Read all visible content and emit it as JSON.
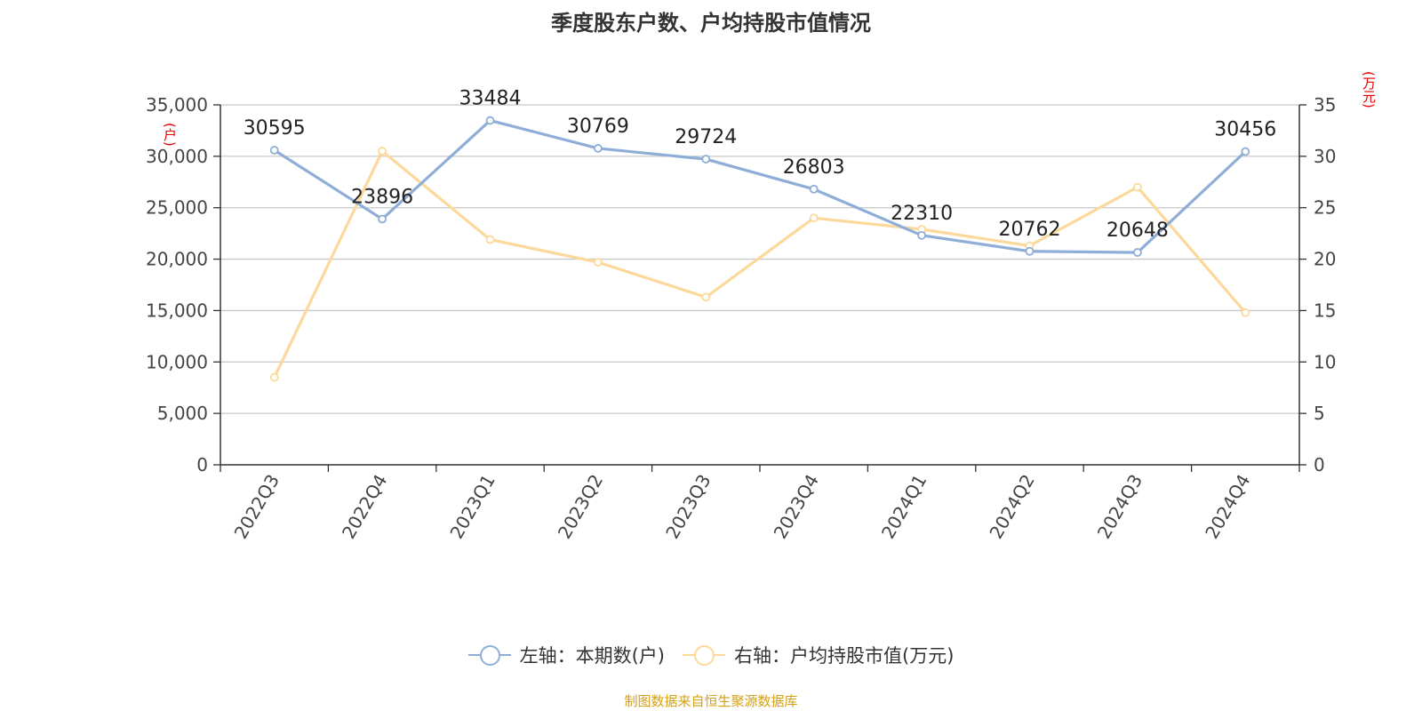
{
  "title": "季度股东户数、户均持股市值情况",
  "source": "制图数据来自恒生聚源数据库",
  "colors": {
    "left": "#8eaed8",
    "right": "#fcd99a",
    "unit_label": "#e60000"
  },
  "chart_data": {
    "type": "line",
    "categories": [
      "2022Q3",
      "2022Q4",
      "2023Q1",
      "2023Q2",
      "2023Q3",
      "2023Q4",
      "2024Q1",
      "2024Q2",
      "2024Q3",
      "2024Q4"
    ],
    "y_left_label": "(户)",
    "y_right_label": "(万元)",
    "y_left_ticks": [
      "0",
      "5,000",
      "10,000",
      "15,000",
      "20,000",
      "25,000",
      "30,000",
      "35,000"
    ],
    "y_right_ticks": [
      "0",
      "5",
      "10",
      "15",
      "20",
      "25",
      "30",
      "35"
    ],
    "y_left_range": [
      0,
      35000
    ],
    "y_right_range": [
      0,
      35
    ],
    "grid": true,
    "legend_position": "bottom",
    "series": [
      {
        "name": "左轴：本期数(户)",
        "axis": "left",
        "values": [
          30595,
          23896,
          33484,
          30769,
          29724,
          26803,
          22310,
          20762,
          20648,
          30456
        ],
        "labels": [
          "30595",
          "23896",
          "33484",
          "30769",
          "29724",
          "26803",
          "22310",
          "20762",
          "20648",
          "30456"
        ]
      },
      {
        "name": "右轴：户均持股市值(万元)",
        "axis": "right",
        "values": [
          8.5,
          30.5,
          21.9,
          19.7,
          16.3,
          24.0,
          22.9,
          21.3,
          27.0,
          14.8
        ]
      }
    ]
  }
}
